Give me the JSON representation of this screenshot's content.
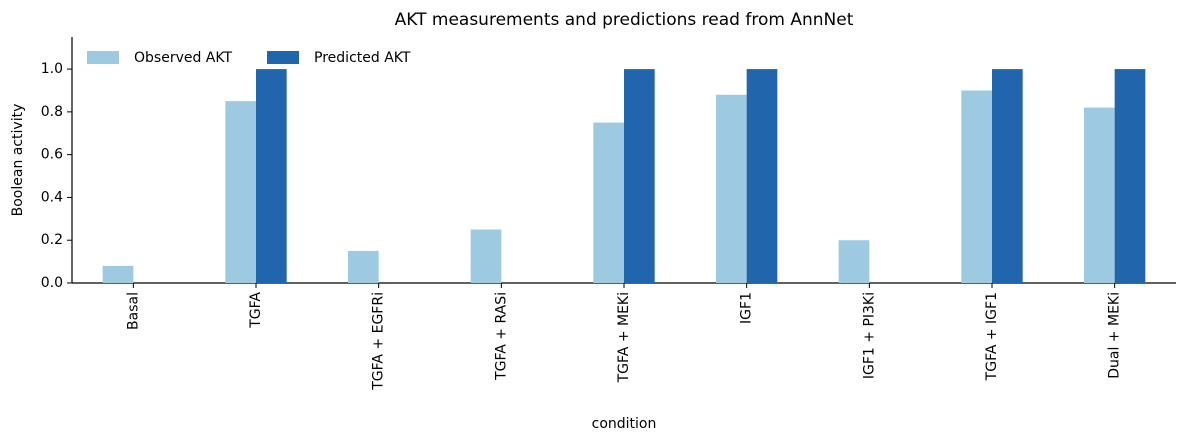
{
  "chart_data": {
    "type": "bar",
    "title": "AKT measurements and predictions read from AnnNet",
    "x_label": "condition",
    "y_label": "Boolean activity",
    "categories": [
      "Basal",
      "TGFA",
      "TGFA + EGFRi",
      "TGFA + RASi",
      "TGFA + MEKi",
      "IGF1",
      "IGF1 + PI3Ki",
      "TGFA + IGF1",
      "Dual + MEKi"
    ],
    "series": [
      {
        "name": "Observed AKT",
        "color": "#9ecae1",
        "values": [
          0.08,
          0.85,
          0.15,
          0.25,
          0.75,
          0.88,
          0.2,
          0.9,
          0.82
        ]
      },
      {
        "name": "Predicted AKT",
        "color": "#2166ac",
        "values": [
          0,
          1,
          0,
          0,
          1,
          1,
          0,
          1,
          1
        ]
      }
    ],
    "ylim": [
      0,
      1.15
    ],
    "yticks": [
      {
        "value": 0,
        "label": "0.0"
      },
      {
        "value": 0.2,
        "label": "0.2"
      },
      {
        "value": 0.4,
        "label": "0.4"
      },
      {
        "value": 0.6,
        "label": "0.6"
      },
      {
        "value": 0.8,
        "label": "0.8"
      },
      {
        "value": 1,
        "label": "1.0"
      }
    ],
    "grid": false,
    "legend": "upper left"
  }
}
